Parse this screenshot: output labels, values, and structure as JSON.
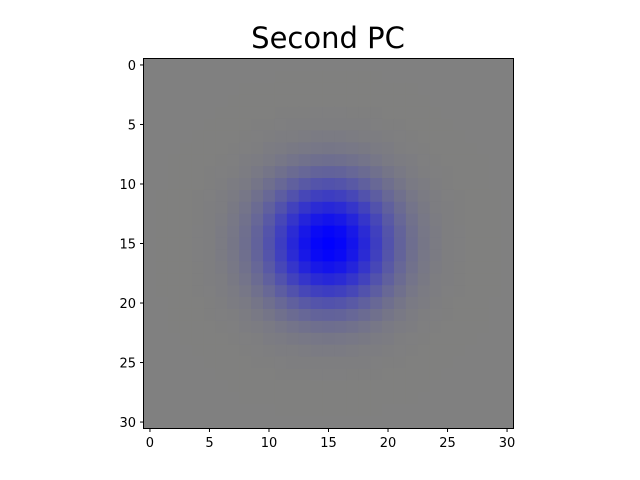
{
  "chart_data": {
    "type": "heatmap",
    "title": "Second PC",
    "xlabel": "",
    "ylabel": "",
    "grid_size": 31,
    "xlim": [
      -0.5,
      30.5
    ],
    "ylim": [
      30.5,
      -0.5
    ],
    "x_ticks": [
      0,
      5,
      10,
      15,
      20,
      25,
      30
    ],
    "y_ticks": [
      0,
      5,
      10,
      15,
      20,
      25,
      30
    ],
    "grid": false,
    "image": {
      "center": [
        15,
        15
      ],
      "peak_color": "#0000ff",
      "background_color": "#808080",
      "ring_color": "#7f7f78",
      "peak_sigma": 3.5,
      "ring_sigma": 7.0,
      "ring_strength": 0.06
    }
  }
}
